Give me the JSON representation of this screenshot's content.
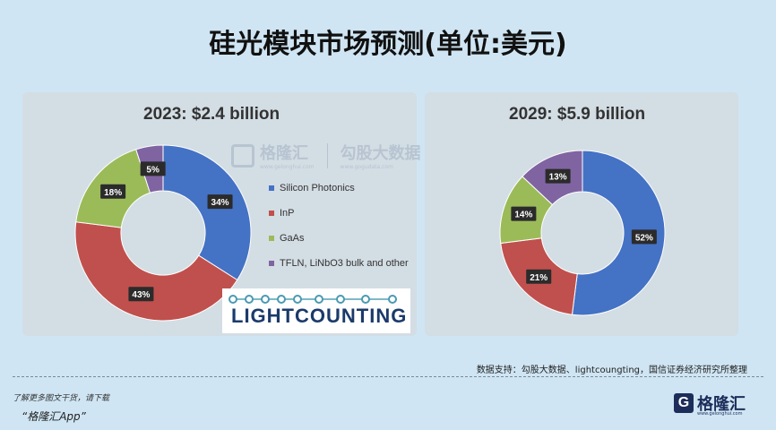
{
  "page": {
    "title": "硅光模块市场预测(单位:美元)",
    "source": "数据支持：勾股大数据、lightcoungting，国信证券经济研究所整理",
    "footer_line1": "了解更多图文干货，请下载",
    "footer_line2": "“格隆汇App”",
    "logo_mark": "G",
    "logo_text": "格隆汇",
    "logo_url": "www.gelonghui.com",
    "watermark_a": "格隆汇",
    "watermark_a_url": "www.gelonghui.com",
    "watermark_b": "勾股大数据",
    "watermark_b_url": "www.gogudata.com",
    "lightcounting": "LIGHTCOUNTING"
  },
  "colors": {
    "silicon_photonics": "#4472c4",
    "inp": "#c0504d",
    "gaas": "#9bbb59",
    "tfln": "#8064a2",
    "background": "#cfe5f3",
    "panel": "#d3dde4"
  },
  "chart_data": [
    {
      "type": "pie",
      "donut": true,
      "title": "2023: $2.4 billion",
      "categories": [
        "Silicon Photonics",
        "InP",
        "GaAs",
        "TFLN, LiNbO3 bulk and other"
      ],
      "values": [
        34,
        43,
        18,
        5
      ],
      "labels": [
        "34%",
        "43%",
        "18%",
        "5%"
      ],
      "legend": "right"
    },
    {
      "type": "pie",
      "donut": true,
      "title": "2029: $5.9 billion",
      "categories": [
        "Silicon Photonics",
        "InP",
        "GaAs",
        "TFLN, LiNbO3 bulk and other"
      ],
      "values": [
        52,
        21,
        14,
        13
      ],
      "labels": [
        "52%",
        "21%",
        "14%",
        "13%"
      ],
      "legend": "none"
    }
  ],
  "legend": [
    {
      "label": "Silicon Photonics",
      "color": "#4472c4"
    },
    {
      "label": "InP",
      "color": "#c0504d"
    },
    {
      "label": "GaAs",
      "color": "#9bbb59"
    },
    {
      "label": "TFLN, LiNbO3 bulk and other",
      "color": "#8064a2"
    }
  ]
}
